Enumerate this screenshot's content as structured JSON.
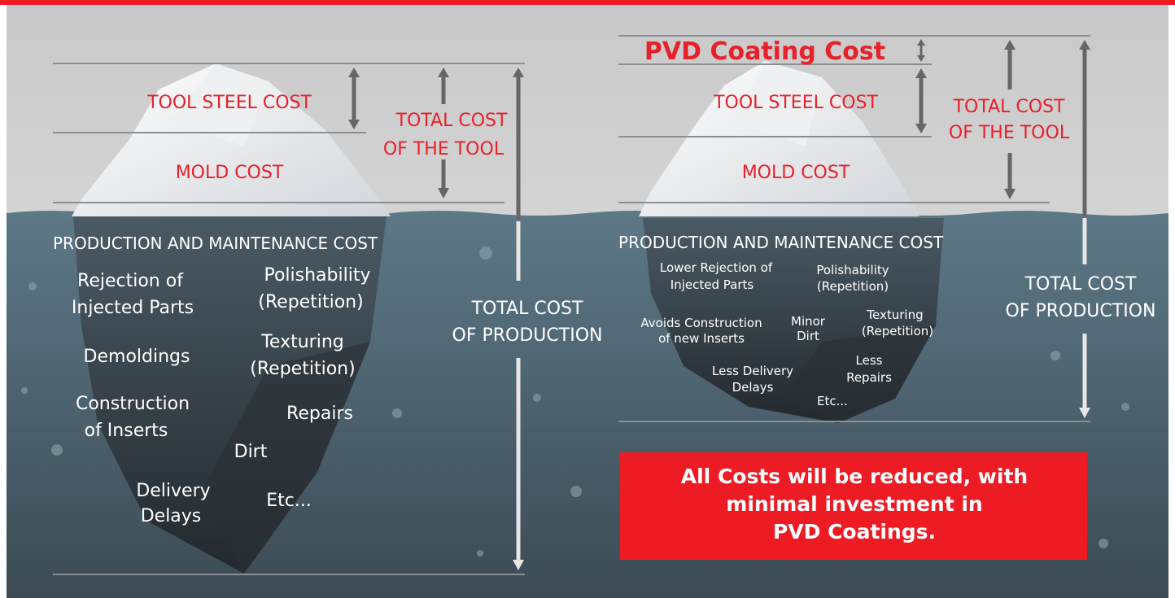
{
  "left": {
    "tool_steel_cost": "TOOL STEEL COST",
    "mold_cost": "MOLD COST",
    "total_tool": [
      "TOTAL COST",
      "OF THE TOOL"
    ],
    "production_heading": "PRODUCTION AND MAINTENANCE COST",
    "items": [
      [
        "Rejection of",
        "Injected Parts"
      ],
      [
        "Polishability",
        "(Repetition)"
      ],
      [
        "Demoldings"
      ],
      [
        "Texturing",
        "(Repetition)"
      ],
      [
        "Construction",
        "of Inserts"
      ],
      [
        "Repairs"
      ],
      [
        "Dirt"
      ],
      [
        "Delivery",
        "Delays"
      ],
      [
        "Etc..."
      ]
    ],
    "total_production": [
      "TOTAL COST",
      "OF PRODUCTION"
    ]
  },
  "right": {
    "pvd_cost": "PVD Coating Cost",
    "tool_steel_cost": "TOOL STEEL COST",
    "mold_cost": "MOLD COST",
    "total_tool": [
      "TOTAL COST",
      "OF THE TOOL"
    ],
    "production_heading": "PRODUCTION AND MAINTENANCE COST",
    "items": [
      [
        "Lower Rejection of",
        "Injected Parts"
      ],
      [
        "Polishability",
        "(Repetition)"
      ],
      [
        "Avoids Construction",
        "of new Inserts"
      ],
      [
        "Minor",
        "Dirt"
      ],
      [
        "Texturing",
        "(Repetition)"
      ],
      [
        "Less Delivery",
        "Delays"
      ],
      [
        "Less",
        "Repairs"
      ],
      [
        "Etc..."
      ]
    ],
    "total_production": [
      "TOTAL COST",
      "OF PRODUCTION"
    ]
  },
  "callout": [
    "All Costs will be reduced, with",
    "minimal investment in",
    "PVD Coatings."
  ]
}
